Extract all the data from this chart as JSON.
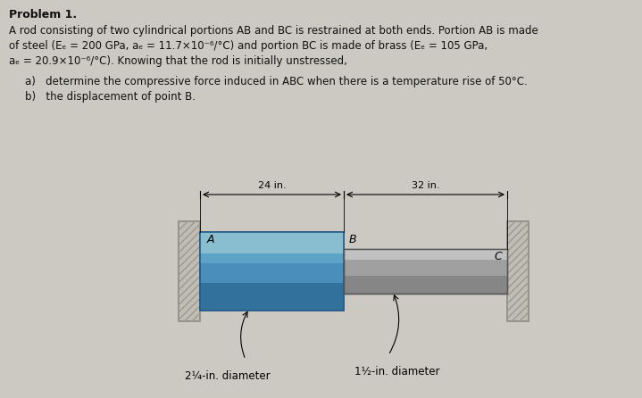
{
  "title": "Problem 1.",
  "background_color": "#ccc9c2",
  "text_color": "#111111",
  "line1": "A rod consisting of two cylindrical portions AB and BC is restrained at both ends. Portion AB is made",
  "line2": "of steel (Eₑ ≈ 200 GPa, aₑ ≈ 11.7×10⁻⁶/°C) and portion BC is made of brass (Eₑ ≈ 105 GPa,",
  "line3": "aₑ ≈ 20.9×10⁻⁶/°C). Knowing that the rod is initially unstressed,",
  "sub_a": "a)   determine the compressive force induced in ABC when there is a temperature rise of 50°C.",
  "sub_b": "b)   the displacement of point B.",
  "dim_left": "24 in.",
  "dim_right": "32 in.",
  "label_A": "A",
  "label_B": "B",
  "label_C": "C",
  "diam_left": "2¼-in. diameter",
  "diam_right": "1½-in. diameter",
  "wall_color": "#c0bdb4",
  "wall_edge_color": "#888880",
  "steel_face": "#5b9dc4",
  "steel_highlight": "#9ecae1",
  "steel_dark": "#2d6e9e",
  "steel_mid": "#4a8ab5",
  "brass_face": "#b0b0b0",
  "brass_highlight": "#d4d4d4",
  "brass_dark": "#808080"
}
